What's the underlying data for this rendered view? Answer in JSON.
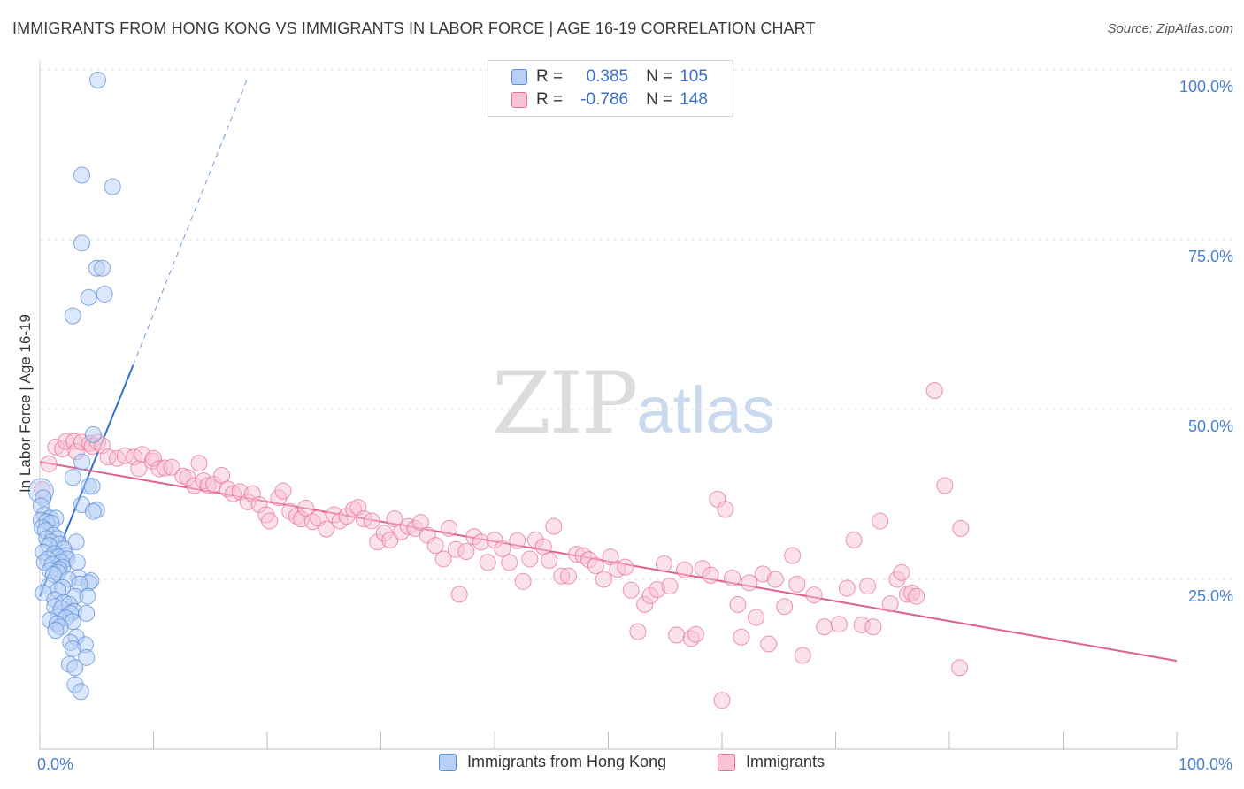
{
  "title": "IMMIGRANTS FROM HONG KONG VS IMMIGRANTS IN LABOR FORCE | AGE 16-19 CORRELATION CHART",
  "source": "Source: ZipAtlas.com",
  "watermark": {
    "zip": "ZIP",
    "atlas": "atlas"
  },
  "colors": {
    "blue": "#5b8fd8",
    "blue_fill": "#b8d0f5",
    "pink": "#e8709a",
    "pink_fill": "#f8c4d4",
    "tick": "#4a7fd0"
  },
  "legend": {
    "rows": [
      {
        "r_label": "R =",
        "r_value": "0.385",
        "n_label": "N =",
        "n_value": "105",
        "color": "blue"
      },
      {
        "r_label": "R =",
        "r_value": "-0.786",
        "n_label": "N =",
        "n_value": "148",
        "color": "pink"
      }
    ],
    "placement": "top-center"
  },
  "bottom_legend": [
    "Immigrants from Hong Kong",
    "Immigrants"
  ],
  "chart_data": {
    "type": "scatter",
    "title": "IMMIGRANTS FROM HONG KONG VS IMMIGRANTS IN LABOR FORCE | AGE 16-19 CORRELATION CHART",
    "xlabel": "",
    "ylabel": "In Labor Force | Age 16-19",
    "xlim": [
      0,
      100
    ],
    "ylim": [
      0,
      100
    ],
    "x_tick_labels": [
      "0.0%",
      "100.0%"
    ],
    "y_tick_labels": [
      "25.0%",
      "50.0%",
      "75.0%",
      "100.0%"
    ],
    "y_ticks": [
      25,
      50,
      75,
      100
    ],
    "grid": true,
    "series": [
      {
        "name": "Immigrants from Hong Kong",
        "color": "blue",
        "trend": {
          "x": [
            0,
            8.2
          ],
          "y": [
            22.5,
            56.5
          ],
          "extend_to": [
            18.2,
            98.5
          ]
        },
        "points": [
          [
            5.1,
            98.5
          ],
          [
            3.7,
            84.5
          ],
          [
            6.4,
            82.8
          ],
          [
            3.7,
            74.5
          ],
          [
            5.0,
            70.8
          ],
          [
            5.5,
            70.8
          ],
          [
            5.7,
            67.0
          ],
          [
            4.3,
            66.5
          ],
          [
            2.9,
            63.8
          ],
          [
            4.7,
            46.3
          ],
          [
            3.7,
            42.3
          ],
          [
            2.9,
            40.0
          ],
          [
            4.3,
            38.7
          ],
          [
            4.6,
            38.7
          ],
          [
            0.1,
            38.0
          ],
          [
            0.3,
            37.0
          ],
          [
            3.7,
            36.0
          ],
          [
            0.1,
            35.8
          ],
          [
            5.0,
            35.2
          ],
          [
            4.7,
            35.0
          ],
          [
            0.4,
            34.5
          ],
          [
            0.9,
            34.0
          ],
          [
            1.4,
            34.0
          ],
          [
            0.1,
            33.7
          ],
          [
            0.6,
            33.5
          ],
          [
            1.0,
            33.3
          ],
          [
            0.2,
            32.6
          ],
          [
            0.5,
            32.2
          ],
          [
            1.2,
            31.5
          ],
          [
            0.6,
            31.0
          ],
          [
            1.6,
            31.0
          ],
          [
            1.0,
            30.5
          ],
          [
            1.7,
            30.2
          ],
          [
            0.8,
            30.0
          ],
          [
            3.2,
            30.5
          ],
          [
            2.1,
            29.5
          ],
          [
            0.3,
            29.0
          ],
          [
            1.3,
            28.8
          ],
          [
            2.3,
            28.5
          ],
          [
            1.6,
            28.3
          ],
          [
            2.4,
            28.0
          ],
          [
            0.7,
            28.0
          ],
          [
            1.9,
            27.5
          ],
          [
            0.4,
            27.5
          ],
          [
            1.1,
            27.2
          ],
          [
            3.3,
            27.5
          ],
          [
            2.0,
            26.8
          ],
          [
            1.7,
            26.5
          ],
          [
            0.9,
            26.3
          ],
          [
            1.6,
            26.0
          ],
          [
            1.2,
            25.7
          ],
          [
            3.4,
            25.3
          ],
          [
            2.5,
            25.0
          ],
          [
            4.5,
            24.8
          ],
          [
            4.3,
            24.5
          ],
          [
            3.5,
            24.3
          ],
          [
            0.8,
            24.0
          ],
          [
            2.0,
            23.8
          ],
          [
            1.6,
            23.4
          ],
          [
            0.3,
            23.0
          ],
          [
            3.1,
            22.5
          ],
          [
            4.2,
            22.5
          ],
          [
            1.3,
            22.0
          ],
          [
            2.1,
            21.6
          ],
          [
            2.6,
            21.3
          ],
          [
            1.3,
            21.0
          ],
          [
            1.9,
            20.7
          ],
          [
            3.0,
            20.3
          ],
          [
            2.7,
            20.0
          ],
          [
            4.1,
            20.0
          ],
          [
            1.6,
            19.5
          ],
          [
            2.3,
            19.3
          ],
          [
            0.9,
            19.0
          ],
          [
            2.9,
            18.8
          ],
          [
            1.5,
            18.5
          ],
          [
            1.8,
            18.0
          ],
          [
            1.4,
            17.5
          ],
          [
            3.2,
            16.5
          ],
          [
            2.7,
            15.7
          ],
          [
            4.0,
            15.4
          ],
          [
            2.9,
            14.8
          ],
          [
            4.1,
            13.5
          ],
          [
            2.6,
            12.5
          ],
          [
            3.1,
            12.0
          ],
          [
            3.1,
            9.5
          ],
          [
            3.6,
            8.5
          ]
        ]
      },
      {
        "name": "Immigrants",
        "color": "pink",
        "trend": {
          "x": [
            0,
            100
          ],
          "y": [
            42.3,
            13.0
          ]
        },
        "points": [
          [
            0.2,
            38.2
          ],
          [
            0.8,
            42.0
          ],
          [
            1.4,
            44.5
          ],
          [
            2.0,
            44.2
          ],
          [
            2.3,
            45.3
          ],
          [
            3.0,
            45.3
          ],
          [
            3.2,
            43.8
          ],
          [
            3.7,
            45.2
          ],
          [
            4.4,
            45.0
          ],
          [
            4.6,
            44.6
          ],
          [
            5.1,
            45.2
          ],
          [
            5.5,
            44.7
          ],
          [
            6.0,
            43.0
          ],
          [
            6.8,
            42.8
          ],
          [
            7.5,
            43.2
          ],
          [
            8.3,
            43.0
          ],
          [
            8.7,
            41.3
          ],
          [
            9.0,
            43.4
          ],
          [
            9.9,
            42.4
          ],
          [
            10.0,
            42.8
          ],
          [
            10.5,
            41.3
          ],
          [
            11.0,
            41.4
          ],
          [
            11.6,
            41.5
          ],
          [
            12.6,
            40.2
          ],
          [
            13.0,
            40.0
          ],
          [
            13.6,
            38.8
          ],
          [
            14.0,
            42.1
          ],
          [
            14.4,
            39.5
          ],
          [
            14.8,
            38.8
          ],
          [
            15.3,
            39.0
          ],
          [
            16.0,
            40.3
          ],
          [
            16.5,
            38.3
          ],
          [
            17.0,
            37.6
          ],
          [
            17.6,
            37.9
          ],
          [
            18.3,
            36.4
          ],
          [
            18.7,
            37.6
          ],
          [
            19.3,
            36.0
          ],
          [
            19.9,
            34.5
          ],
          [
            20.2,
            33.6
          ],
          [
            21.0,
            37.0
          ],
          [
            21.4,
            38.0
          ],
          [
            22.0,
            35.0
          ],
          [
            22.6,
            34.3
          ],
          [
            23.0,
            33.9
          ],
          [
            23.4,
            35.5
          ],
          [
            24.0,
            33.5
          ],
          [
            24.5,
            34.0
          ],
          [
            25.2,
            32.4
          ],
          [
            25.9,
            34.5
          ],
          [
            26.4,
            33.6
          ],
          [
            27.0,
            34.3
          ],
          [
            27.6,
            35.3
          ],
          [
            28.0,
            35.6
          ],
          [
            28.5,
            33.9
          ],
          [
            29.2,
            33.6
          ],
          [
            29.7,
            30.5
          ],
          [
            30.3,
            31.8
          ],
          [
            30.8,
            30.8
          ],
          [
            31.2,
            33.9
          ],
          [
            31.8,
            32.0
          ],
          [
            32.4,
            32.8
          ],
          [
            33.0,
            32.5
          ],
          [
            33.5,
            33.4
          ],
          [
            34.1,
            31.5
          ],
          [
            34.8,
            30.0
          ],
          [
            35.5,
            28.0
          ],
          [
            36.0,
            32.5
          ],
          [
            36.6,
            29.4
          ],
          [
            36.9,
            22.8
          ],
          [
            37.5,
            29.1
          ],
          [
            38.2,
            31.3
          ],
          [
            38.8,
            30.5
          ],
          [
            39.4,
            27.5
          ],
          [
            40.0,
            30.8
          ],
          [
            40.7,
            29.5
          ],
          [
            41.3,
            27.5
          ],
          [
            42.0,
            30.7
          ],
          [
            42.5,
            24.7
          ],
          [
            43.1,
            28.0
          ],
          [
            43.6,
            30.8
          ],
          [
            44.3,
            29.8
          ],
          [
            44.8,
            27.8
          ],
          [
            45.2,
            32.8
          ],
          [
            45.9,
            25.5
          ],
          [
            46.5,
            25.5
          ],
          [
            47.2,
            28.7
          ],
          [
            47.8,
            28.5
          ],
          [
            48.3,
            27.9
          ],
          [
            48.9,
            27.0
          ],
          [
            49.6,
            25.0
          ],
          [
            50.2,
            28.3
          ],
          [
            50.8,
            26.5
          ],
          [
            51.5,
            26.8
          ],
          [
            52.0,
            23.4
          ],
          [
            52.6,
            17.3
          ],
          [
            53.2,
            21.3
          ],
          [
            53.7,
            22.6
          ],
          [
            54.3,
            23.5
          ],
          [
            54.9,
            27.3
          ],
          [
            55.4,
            24.0
          ],
          [
            56.0,
            16.8
          ],
          [
            56.7,
            26.4
          ],
          [
            57.3,
            16.3
          ],
          [
            57.7,
            16.9
          ],
          [
            58.3,
            26.6
          ],
          [
            59.0,
            25.6
          ],
          [
            59.6,
            36.8
          ],
          [
            60.3,
            35.3
          ],
          [
            60.9,
            25.2
          ],
          [
            61.4,
            21.3
          ],
          [
            61.7,
            16.5
          ],
          [
            62.4,
            24.5
          ],
          [
            63.0,
            19.4
          ],
          [
            63.6,
            25.8
          ],
          [
            64.1,
            15.5
          ],
          [
            64.7,
            25.0
          ],
          [
            65.5,
            21.0
          ],
          [
            66.2,
            28.5
          ],
          [
            66.6,
            24.3
          ],
          [
            67.1,
            13.8
          ],
          [
            68.1,
            22.7
          ],
          [
            69.0,
            18.0
          ],
          [
            70.3,
            18.4
          ],
          [
            71.0,
            23.7
          ],
          [
            71.6,
            30.8
          ],
          [
            72.3,
            18.3
          ],
          [
            72.8,
            24.0
          ],
          [
            73.3,
            18.0
          ],
          [
            73.9,
            33.6
          ],
          [
            74.8,
            21.4
          ],
          [
            75.4,
            25.0
          ],
          [
            75.8,
            26.0
          ],
          [
            76.3,
            22.8
          ],
          [
            76.7,
            23.0
          ],
          [
            77.1,
            22.5
          ],
          [
            78.7,
            52.8
          ],
          [
            79.6,
            38.8
          ],
          [
            81.0,
            32.5
          ],
          [
            60.0,
            7.2
          ],
          [
            80.9,
            12.0
          ]
        ]
      }
    ]
  }
}
